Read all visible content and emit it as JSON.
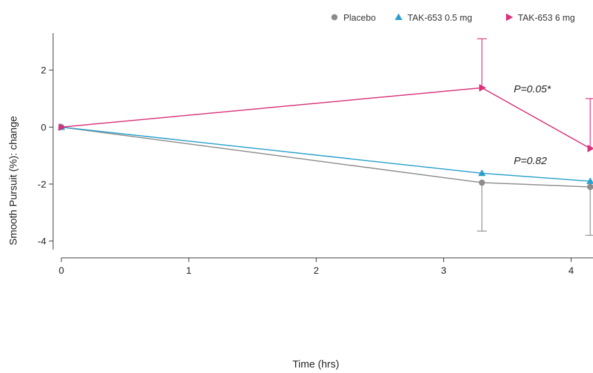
{
  "chart_data": {
    "type": "line",
    "xlabel": "Time (hrs)",
    "ylabel": "Smooth Pursuit (%): change",
    "x_ticks": [
      0,
      1,
      2,
      3,
      4
    ],
    "y_ticks": [
      -4,
      -2,
      0,
      2
    ],
    "xlim": [
      0,
      4.15
    ],
    "ylim": [
      -4.3,
      3.3
    ],
    "grid": false,
    "legend_position": "top-right",
    "series": [
      {
        "name": "Placebo",
        "color": "#8c8c8c",
        "marker": "circle",
        "x": [
          0,
          3.3,
          4.15
        ],
        "y": [
          0,
          -1.95,
          -2.1
        ],
        "error_lower": [
          null,
          -3.65,
          -3.8
        ],
        "error_upper": [
          null,
          null,
          null
        ]
      },
      {
        "name": "TAK-653 0.5 mg",
        "color": "#29a0cc",
        "marker": "triangle-up",
        "x": [
          0,
          3.3,
          4.15
        ],
        "y": [
          0,
          -1.62,
          -1.9
        ],
        "error_lower": [
          null,
          null,
          null
        ],
        "error_upper": [
          null,
          null,
          null
        ]
      },
      {
        "name": "TAK-653 6 mg",
        "color": "#d9307a",
        "marker": "triangle-right",
        "x": [
          0,
          3.3,
          4.15
        ],
        "y": [
          0,
          1.38,
          -0.75
        ],
        "error_lower": [
          null,
          null,
          null
        ],
        "error_upper": [
          null,
          3.1,
          1.0
        ]
      }
    ],
    "annotations": [
      {
        "text": "P=0.05*",
        "x": 3.55,
        "y": 1.22
      },
      {
        "text": "P=0.82",
        "x": 3.55,
        "y": -1.3
      }
    ]
  }
}
